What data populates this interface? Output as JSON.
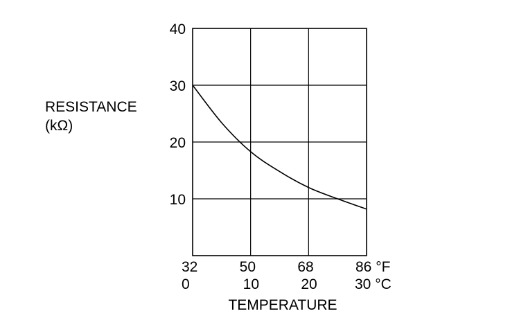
{
  "chart_data": {
    "type": "line",
    "ylabel": [
      "RESISTANCE",
      "(kΩ)"
    ],
    "xlabel": "TEMPERATURE",
    "ylim": [
      0,
      40
    ],
    "xlim_c": [
      0,
      30
    ],
    "y_ticks": [
      "10",
      "20",
      "30",
      "40"
    ],
    "x_ticks_f": [
      "32",
      "50",
      "68",
      "86 °F"
    ],
    "x_ticks_c": [
      "0",
      "10",
      "20",
      "30 °C"
    ],
    "grid": true,
    "series": [
      {
        "x": [
          0,
          5,
          10,
          15,
          20,
          25,
          30
        ],
        "values": [
          30.0,
          23.4,
          18.3,
          14.8,
          12.0,
          10.0,
          8.2
        ]
      }
    ],
    "colors": {
      "line": "#000000",
      "grid": "#000000",
      "background": "#ffffff"
    }
  }
}
